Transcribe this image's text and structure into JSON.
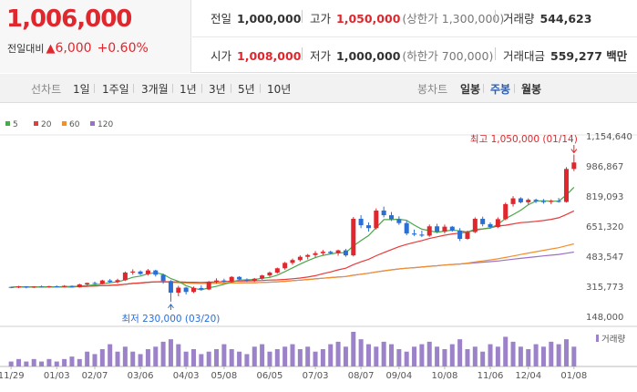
{
  "quote": {
    "price": "1,006,000",
    "change_label": "전일대비",
    "change_arrow": "▲",
    "change_amount": "6,000",
    "change_pct": "+0.60%",
    "stats": {
      "prev_close_label": "전일",
      "prev_close": "1,000,000",
      "high_label": "고가",
      "high": "1,050,000",
      "upper_limit_label": "(상한가 1,300,000)",
      "volume_label": "거래량",
      "volume": "544,623",
      "open_label": "시가",
      "open": "1,008,000",
      "low_label": "저가",
      "low": "1,000,000",
      "lower_limit_label": "(하한가 700,000)",
      "amount_label": "거래대금",
      "amount": "559,277 백만"
    }
  },
  "toolbar": {
    "line_chart_label": "선차트",
    "periods": [
      "1일",
      "1주일",
      "3개월",
      "1년",
      "3년",
      "5년",
      "10년"
    ],
    "candle_chart_label": "봉차트",
    "candle_periods": [
      "일봉",
      "주봉",
      "월봉"
    ],
    "active_candle": "주봉"
  },
  "chart_data": {
    "type": "candlestick",
    "legend": [
      "5",
      "20",
      "60",
      "120"
    ],
    "legend_colors": [
      "#4aa84a",
      "#e83b3b",
      "#f28e2b",
      "#9b6fc9"
    ],
    "y_ticks": [
      "1,154,640",
      "986,867",
      "819,093",
      "651,320",
      "483,547",
      "315,773",
      "148,000"
    ],
    "ylim": [
      148000,
      1154640
    ],
    "x_ticks": [
      "11/29",
      "01/03",
      "02/07",
      "03/06",
      "04/03",
      "05/08",
      "06/05",
      "07/03",
      "08/07",
      "09/04",
      "10/08",
      "11/06",
      "12/04",
      "01/08"
    ],
    "annotations": {
      "high_label": "최고 1,050,000 (01/14)",
      "low_label": "최저 230,000 (03/20)"
    },
    "volume_label": "거래량",
    "candles": [
      [
        312000,
        314000,
        305000,
        310000
      ],
      [
        310000,
        318000,
        305000,
        315000
      ],
      [
        315000,
        316000,
        304000,
        308000
      ],
      [
        308000,
        316000,
        306000,
        314000
      ],
      [
        314000,
        320000,
        310000,
        312000
      ],
      [
        312000,
        318000,
        308000,
        316000
      ],
      [
        316000,
        320000,
        310000,
        312000
      ],
      [
        312000,
        322000,
        310000,
        318000
      ],
      [
        318000,
        320000,
        308000,
        310000
      ],
      [
        310000,
        330000,
        308000,
        326000
      ],
      [
        326000,
        336000,
        320000,
        334000
      ],
      [
        334000,
        342000,
        326000,
        330000
      ],
      [
        330000,
        352000,
        326000,
        348000
      ],
      [
        348000,
        356000,
        334000,
        340000
      ],
      [
        340000,
        358000,
        332000,
        350000
      ],
      [
        350000,
        398000,
        345000,
        392000
      ],
      [
        392000,
        410000,
        380000,
        398000
      ],
      [
        398000,
        404000,
        378000,
        384000
      ],
      [
        384000,
        412000,
        376000,
        404000
      ],
      [
        404000,
        408000,
        370000,
        380000
      ],
      [
        380000,
        386000,
        330000,
        345000
      ],
      [
        345000,
        350000,
        230000,
        280000
      ],
      [
        280000,
        318000,
        260000,
        308000
      ],
      [
        308000,
        312000,
        270000,
        284000
      ],
      [
        284000,
        314000,
        278000,
        306000
      ],
      [
        306000,
        320000,
        292000,
        298000
      ],
      [
        298000,
        345000,
        294000,
        340000
      ],
      [
        340000,
        360000,
        330000,
        348000
      ],
      [
        348000,
        358000,
        336000,
        342000
      ],
      [
        342000,
        372000,
        336000,
        368000
      ],
      [
        368000,
        372000,
        348000,
        354000
      ],
      [
        354000,
        360000,
        340000,
        346000
      ],
      [
        346000,
        362000,
        340000,
        358000
      ],
      [
        358000,
        380000,
        352000,
        376000
      ],
      [
        376000,
        398000,
        368000,
        392000
      ],
      [
        392000,
        420000,
        386000,
        416000
      ],
      [
        416000,
        452000,
        408000,
        446000
      ],
      [
        446000,
        470000,
        436000,
        462000
      ],
      [
        462000,
        488000,
        454000,
        480000
      ],
      [
        480000,
        496000,
        466000,
        490000
      ],
      [
        490000,
        512000,
        478000,
        500000
      ],
      [
        500000,
        518000,
        488000,
        508000
      ],
      [
        508000,
        514000,
        494000,
        500000
      ],
      [
        500000,
        520000,
        486000,
        516000
      ],
      [
        516000,
        524000,
        480000,
        488000
      ],
      [
        488000,
        702000,
        482000,
        692000
      ],
      [
        692000,
        712000,
        640000,
        656000
      ],
      [
        656000,
        672000,
        620000,
        640000
      ],
      [
        640000,
        750000,
        632000,
        738000
      ],
      [
        738000,
        760000,
        700000,
        712000
      ],
      [
        712000,
        730000,
        680000,
        690000
      ],
      [
        690000,
        706000,
        658000,
        668000
      ],
      [
        668000,
        680000,
        600000,
        610000
      ],
      [
        610000,
        632000,
        596000,
        604000
      ],
      [
        604000,
        626000,
        590000,
        598000
      ],
      [
        598000,
        660000,
        592000,
        650000
      ],
      [
        650000,
        664000,
        612000,
        620000
      ],
      [
        620000,
        660000,
        610000,
        648000
      ],
      [
        648000,
        652000,
        620000,
        626000
      ],
      [
        626000,
        640000,
        568000,
        580000
      ],
      [
        580000,
        626000,
        576000,
        618000
      ],
      [
        618000,
        700000,
        612000,
        692000
      ],
      [
        692000,
        704000,
        650000,
        662000
      ],
      [
        662000,
        672000,
        638000,
        646000
      ],
      [
        646000,
        700000,
        640000,
        690000
      ],
      [
        690000,
        782000,
        684000,
        774000
      ],
      [
        774000,
        818000,
        760000,
        806000
      ],
      [
        806000,
        812000,
        778000,
        784000
      ],
      [
        784000,
        806000,
        772000,
        798000
      ],
      [
        798000,
        804000,
        780000,
        790000
      ],
      [
        790000,
        802000,
        776000,
        786000
      ],
      [
        786000,
        800000,
        774000,
        792000
      ],
      [
        792000,
        808000,
        782000,
        786000
      ],
      [
        786000,
        980000,
        782000,
        970000
      ],
      [
        970000,
        1050000,
        958000,
        1006000
      ]
    ],
    "volumes": [
      2,
      3,
      2,
      3,
      2,
      3,
      2,
      3,
      4,
      3,
      6,
      5,
      7,
      9,
      6,
      8,
      6,
      5,
      7,
      8,
      10,
      11,
      9,
      6,
      7,
      5,
      6,
      7,
      9,
      7,
      6,
      5,
      8,
      9,
      6,
      7,
      8,
      9,
      7,
      8,
      6,
      7,
      9,
      10,
      8,
      14,
      11,
      9,
      8,
      10,
      9,
      7,
      6,
      8,
      9,
      10,
      8,
      7,
      9,
      11,
      7,
      8,
      6,
      9,
      8,
      12,
      10,
      8,
      7,
      9,
      8,
      10,
      9,
      11,
      8
    ]
  }
}
